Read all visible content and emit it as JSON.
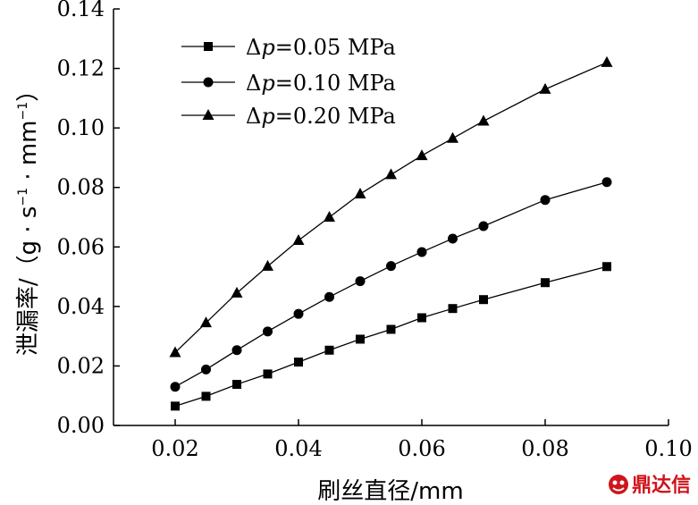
{
  "chart_data": {
    "type": "line",
    "xlabel": "刷丝直径/mm",
    "ylabel": "泄漏率/（g · s",
    "ylabel_sup1": "−1",
    "ylabel_mid": " · mm",
    "ylabel_sup2": "−1",
    "ylabel_end": "）",
    "xlim": [
      0.01,
      0.1
    ],
    "ylim": [
      0.0,
      0.14
    ],
    "xticks": [
      "0.02",
      "0.04",
      "0.06",
      "0.08",
      "0.10"
    ],
    "yticks": [
      "0.00",
      "0.02",
      "0.04",
      "0.06",
      "0.08",
      "0.10",
      "0.12",
      "0.14"
    ],
    "x": [
      0.02,
      0.025,
      0.03,
      0.035,
      0.04,
      0.045,
      0.05,
      0.055,
      0.06,
      0.065,
      0.07,
      0.08,
      0.09
    ],
    "legend_position": "top-left",
    "series": [
      {
        "prefix": "Δ",
        "var": "p",
        "suffix": "=0.05 MPa",
        "marker": "square",
        "values": [
          0.0065,
          0.0098,
          0.0138,
          0.0173,
          0.0213,
          0.0253,
          0.029,
          0.0323,
          0.0362,
          0.0393,
          0.0423,
          0.048,
          0.0534
        ]
      },
      {
        "prefix": "Δ",
        "var": "p",
        "suffix": "=0.10 MPa",
        "marker": "circle",
        "values": [
          0.013,
          0.0188,
          0.0253,
          0.0316,
          0.0375,
          0.0432,
          0.0485,
          0.0536,
          0.0583,
          0.0628,
          0.067,
          0.0758,
          0.0818
        ]
      },
      {
        "prefix": "Δ",
        "var": "p",
        "suffix": "=0.20 MPa",
        "marker": "triangle",
        "values": [
          0.0245,
          0.0345,
          0.0445,
          0.0535,
          0.0622,
          0.07,
          0.0778,
          0.0843,
          0.0907,
          0.0965,
          0.1023,
          0.113,
          0.122
        ]
      }
    ]
  },
  "watermark": {
    "text": "鼎达信",
    "color": "#d0141b",
    "icon": "logo-icon"
  }
}
